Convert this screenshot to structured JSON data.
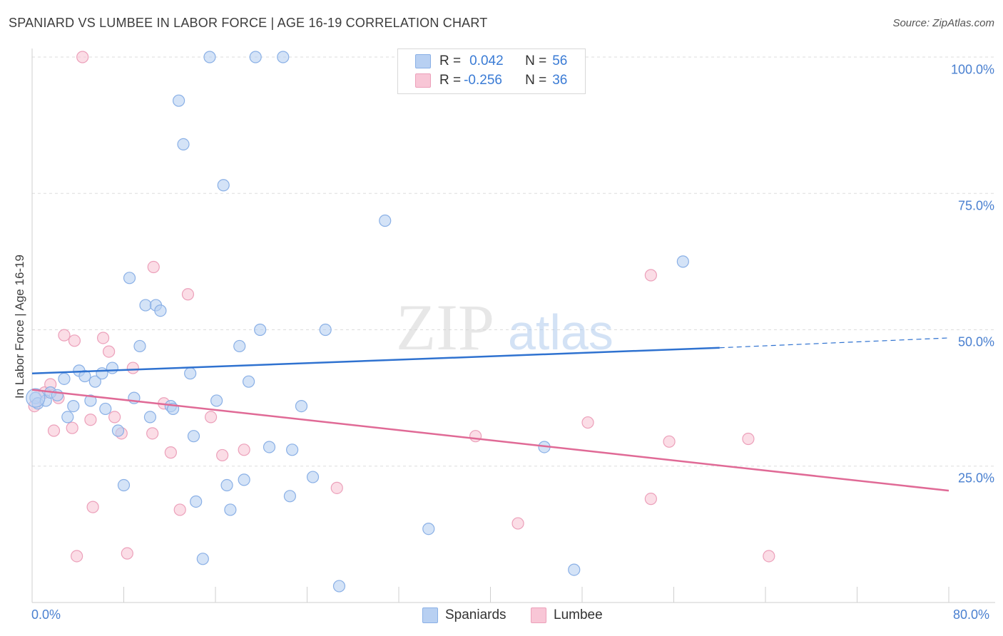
{
  "title": "SPANIARD VS LUMBEE IN LABOR FORCE | AGE 16-19 CORRELATION CHART",
  "source": "Source: ZipAtlas.com",
  "watermark": {
    "zip": "ZIP",
    "atlas": "atlas"
  },
  "colors": {
    "blue_fill": "#b8d0f2",
    "blue_stroke": "#8ab0e6",
    "blue_line": "#2f72d0",
    "pink_fill": "#f8c6d6",
    "pink_stroke": "#eca0ba",
    "pink_line": "#e06a96",
    "axis_text": "#4a80d0",
    "grid": "#dddddd"
  },
  "legend": {
    "rows": [
      {
        "r_label": "R = ",
        "r_value": "0.042",
        "n_label": "N = ",
        "n_value": "56"
      },
      {
        "r_label": "R = ",
        "r_value": "-0.256",
        "n_label": "N = ",
        "n_value": "36"
      }
    ]
  },
  "bottom_legend": {
    "series1": "Spaniards",
    "series2": "Lumbee"
  },
  "chart_data": {
    "type": "scatter",
    "title": "SPANIARD VS LUMBEE IN LABOR FORCE | AGE 16-19 CORRELATION CHART",
    "xlabel": "",
    "ylabel": "In Labor Force | Age 16-19",
    "xlim": [
      0,
      80
    ],
    "ylim": [
      0,
      100
    ],
    "x_tick_labels": [
      "0.0%",
      "80.0%"
    ],
    "y_tick_labels": [
      "100.0%",
      "75.0%",
      "50.0%",
      "25.0%"
    ],
    "y_ticks": [
      100,
      75,
      50,
      25
    ],
    "grid": true,
    "legend_position": "top-center",
    "series": [
      {
        "name": "Spaniards",
        "points": [
          [
            0.3,
            37.5
          ],
          [
            0.5,
            36.5
          ],
          [
            1.2,
            37.0
          ],
          [
            1.6,
            38.5
          ],
          [
            2.2,
            38.0
          ],
          [
            2.8,
            41.0
          ],
          [
            3.1,
            34.0
          ],
          [
            3.6,
            36.0
          ],
          [
            4.1,
            42.5
          ],
          [
            4.6,
            41.5
          ],
          [
            5.1,
            37.0
          ],
          [
            5.5,
            40.5
          ],
          [
            6.1,
            42.0
          ],
          [
            6.4,
            35.5
          ],
          [
            7.0,
            43.0
          ],
          [
            7.5,
            31.5
          ],
          [
            8.0,
            21.5
          ],
          [
            8.5,
            59.5
          ],
          [
            8.9,
            37.5
          ],
          [
            9.4,
            47.0
          ],
          [
            9.9,
            54.5
          ],
          [
            10.3,
            34.0
          ],
          [
            10.8,
            54.5
          ],
          [
            11.2,
            53.5
          ],
          [
            12.1,
            36.0
          ],
          [
            12.3,
            35.5
          ],
          [
            12.8,
            92.0
          ],
          [
            13.2,
            84.0
          ],
          [
            13.8,
            42.0
          ],
          [
            14.1,
            30.5
          ],
          [
            14.3,
            18.5
          ],
          [
            14.9,
            8.0
          ],
          [
            15.5,
            100.0
          ],
          [
            16.1,
            37.0
          ],
          [
            16.7,
            76.5
          ],
          [
            17.0,
            21.5
          ],
          [
            17.3,
            17.0
          ],
          [
            18.1,
            47.0
          ],
          [
            18.5,
            22.5
          ],
          [
            18.9,
            40.5
          ],
          [
            19.5,
            100.0
          ],
          [
            19.9,
            50.0
          ],
          [
            20.7,
            28.5
          ],
          [
            21.9,
            100.0
          ],
          [
            22.5,
            19.5
          ],
          [
            22.7,
            28.0
          ],
          [
            23.5,
            36.0
          ],
          [
            24.5,
            23.0
          ],
          [
            25.6,
            50.0
          ],
          [
            26.8,
            3.0
          ],
          [
            30.8,
            70.0
          ],
          [
            34.6,
            13.5
          ],
          [
            41.2,
            100.0
          ],
          [
            44.7,
            28.5
          ],
          [
            47.3,
            6.0
          ],
          [
            56.8,
            62.5
          ]
        ],
        "trend": {
          "x": [
            0,
            60,
            80
          ],
          "y": [
            42.0,
            46.7,
            48.5
          ]
        }
      },
      {
        "name": "Lumbee",
        "points": [
          [
            0.2,
            36.0
          ],
          [
            1.1,
            38.5
          ],
          [
            1.6,
            40.0
          ],
          [
            1.9,
            31.5
          ],
          [
            2.3,
            37.5
          ],
          [
            2.8,
            49.0
          ],
          [
            3.5,
            32.0
          ],
          [
            3.7,
            48.0
          ],
          [
            3.9,
            8.5
          ],
          [
            4.4,
            100.0
          ],
          [
            5.1,
            33.5
          ],
          [
            5.3,
            17.5
          ],
          [
            6.2,
            48.5
          ],
          [
            6.7,
            46.0
          ],
          [
            7.2,
            34.0
          ],
          [
            7.8,
            31.0
          ],
          [
            8.3,
            9.0
          ],
          [
            8.8,
            43.0
          ],
          [
            10.5,
            31.0
          ],
          [
            10.6,
            61.5
          ],
          [
            11.5,
            36.5
          ],
          [
            12.1,
            27.5
          ],
          [
            12.9,
            17.0
          ],
          [
            13.6,
            56.5
          ],
          [
            15.6,
            34.0
          ],
          [
            16.6,
            27.0
          ],
          [
            18.5,
            28.0
          ],
          [
            26.6,
            21.0
          ],
          [
            38.7,
            30.5
          ],
          [
            42.4,
            14.5
          ],
          [
            48.5,
            33.0
          ],
          [
            54.0,
            19.0
          ],
          [
            54.0,
            60.0
          ],
          [
            55.6,
            29.5
          ],
          [
            62.5,
            30.0
          ],
          [
            64.3,
            8.5
          ]
        ],
        "trend": {
          "x": [
            0,
            80
          ],
          "y": [
            39.0,
            20.5
          ]
        }
      }
    ]
  }
}
